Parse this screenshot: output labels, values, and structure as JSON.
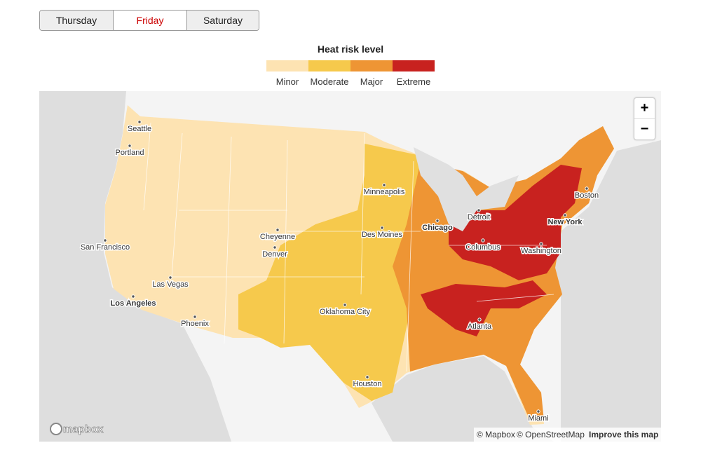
{
  "tabs": [
    "Thursday",
    "Friday",
    "Saturday"
  ],
  "legend": {
    "title": "Heat risk level",
    "items": [
      {
        "label": "Minor",
        "color": "#fde3b2"
      },
      {
        "label": "Moderate",
        "color": "#f6c94c"
      },
      {
        "label": "Major",
        "color": "#ee9534"
      },
      {
        "label": "Extreme",
        "color": "#c8221f"
      }
    ]
  },
  "map": {
    "cities": [
      "Seattle",
      "Portland",
      "San Francisco",
      "Las Vegas",
      "Los Angeles",
      "Phoenix",
      "Cheyenne",
      "Denver",
      "Minneapolis",
      "Des Moines",
      "Chicago",
      "Oklahoma City",
      "Houston",
      "Detroit",
      "Columbus",
      "Washington",
      "New York",
      "Boston",
      "Atlanta",
      "Miami"
    ],
    "zoom_in": "+",
    "zoom_out": "−",
    "logo": "mapbox",
    "attribution": [
      "© Mapbox",
      "© OpenStreetMap",
      "Improve this map"
    ]
  }
}
